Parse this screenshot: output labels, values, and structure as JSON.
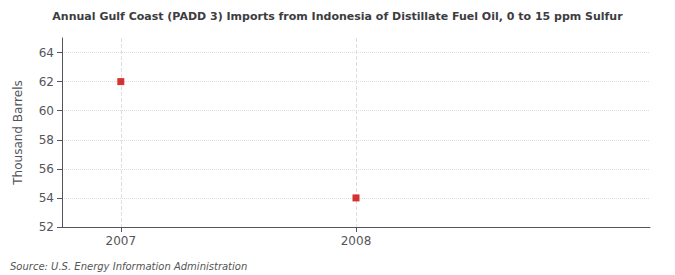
{
  "chart_data": {
    "type": "scatter",
    "title": "Annual Gulf Coast (PADD 3) Imports from Indonesia of Distillate Fuel Oil, 0 to 15 ppm Sulfur",
    "ylabel": "Thousand Barrels",
    "annotation": "Source: U.S. Energy Information Administration",
    "x": [
      2007,
      2008
    ],
    "values": [
      62,
      54
    ],
    "color": "#cc0000",
    "marker": "square",
    "xlim": [
      2006.75,
      2009.25
    ],
    "xticks": [
      2007,
      2008
    ],
    "ylim": [
      52,
      65.0
    ],
    "yticks": [
      52,
      54,
      56,
      58,
      60,
      62,
      64
    ],
    "grid": true
  }
}
